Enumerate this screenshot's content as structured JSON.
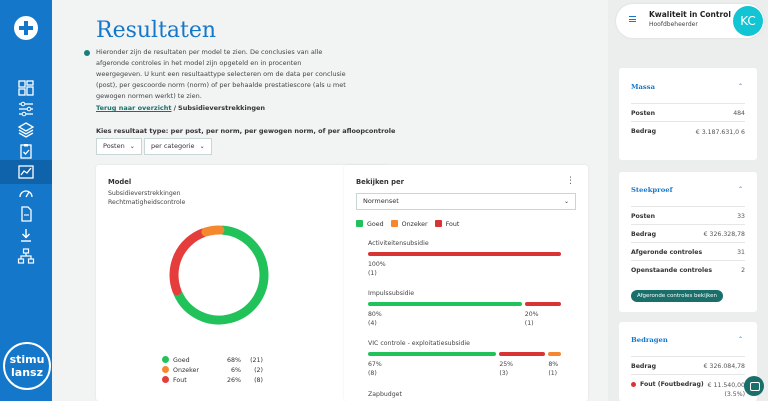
{
  "app": {
    "brand_text": "stimu lansz"
  },
  "header": {
    "title": "Resultaten",
    "intro": "Hieronder zijn de resultaten per model te zien. De conclusies van alle afgeronde controles in het model zijn opgeteld en in procenten weergegeven. U kunt een resultaattype selecteren om de data per conclusie (post), per gescoorde norm (norm) of per behaalde prestatiescore (als u met gewogen normen werkt) te zien."
  },
  "breadcrumb": {
    "back_link": "Terug naar overzicht",
    "separator": "/",
    "current": "Subsidieverstrekkingen"
  },
  "result_type": {
    "label": "Kies resultaat type: per post, per norm, per gewogen norm, of per afloopcontrole",
    "dropdown1": "Posten",
    "dropdown2": "per categorie"
  },
  "model_card": {
    "title": "Model",
    "line1": "Subsidieverstrekkingen",
    "line2": "Rechtmatigheidscontrole",
    "legend": [
      {
        "label": "Goed",
        "pct": "68%",
        "count": "(21)",
        "color": "#22c25a"
      },
      {
        "label": "Onzeker",
        "pct": "6%",
        "count": "(2)",
        "color": "#f5872f"
      },
      {
        "label": "Fout",
        "pct": "26%",
        "count": "(8)",
        "color": "#e53c3c"
      }
    ]
  },
  "chart_data": {
    "type": "pie",
    "categories": [
      "Goed",
      "Onzeker",
      "Fout"
    ],
    "values": [
      68,
      6,
      26
    ],
    "counts": [
      21,
      2,
      8
    ],
    "colors": [
      "#22c25a",
      "#f5872f",
      "#e53c3c"
    ]
  },
  "view_card": {
    "title": "Bekijken per",
    "select_value": "Normenset",
    "legend": [
      {
        "label": "Goed",
        "color": "#22c25a"
      },
      {
        "label": "Onzeker",
        "color": "#f5872f"
      },
      {
        "label": "Fout",
        "color": "#d93434"
      }
    ],
    "rows": [
      {
        "name": "Activiteitensubsidie",
        "segments": [
          {
            "value": 100,
            "pct": "100%",
            "count": "(1)",
            "color": "#d93434"
          }
        ]
      },
      {
        "name": "Impulssubsidie",
        "segments": [
          {
            "value": 80,
            "pct": "80%",
            "count": "(4)",
            "color": "#22c25a"
          },
          {
            "value": 20,
            "pct": "20%",
            "count": "(1)",
            "color": "#d93434"
          }
        ]
      },
      {
        "name": "VIC controle - exploitatiesubsidie",
        "segments": [
          {
            "value": 67,
            "pct": "67%",
            "count": "(8)",
            "color": "#22c25a"
          },
          {
            "value": 25,
            "pct": "25%",
            "count": "(3)",
            "color": "#d93434"
          },
          {
            "value": 8,
            "pct": "8%",
            "count": "(1)",
            "color": "#f5872f"
          }
        ]
      }
    ],
    "next_row": "Zapbudget"
  },
  "user": {
    "name": "Kwaliteit in Control",
    "role": "Hoofdbeheerder",
    "initials": "KC"
  },
  "massa": {
    "title": "Massa",
    "posten_label": "Posten",
    "posten_value": "484",
    "bedrag_label": "Bedrag",
    "bedrag_value": "€ 3.187.631,0 6"
  },
  "steekproef": {
    "title": "Steekproef",
    "rows": [
      {
        "label": "Posten",
        "value": "33"
      },
      {
        "label": "Bedrag",
        "value": "€ 326.328,78"
      },
      {
        "label": "Afgeronde controles",
        "value": "31"
      },
      {
        "label": "Openstaande controles",
        "value": "2"
      }
    ],
    "button": "Afgeronde controles bekijken"
  },
  "bedragen": {
    "title": "Bedragen",
    "bedrag_label": "Bedrag",
    "bedrag_value": "€ 326.084,78",
    "fout_label": "Fout (Foutbedrag)",
    "fout_value": "€ 11.540,00 (3.5%)",
    "fout_color": "#d93434"
  }
}
